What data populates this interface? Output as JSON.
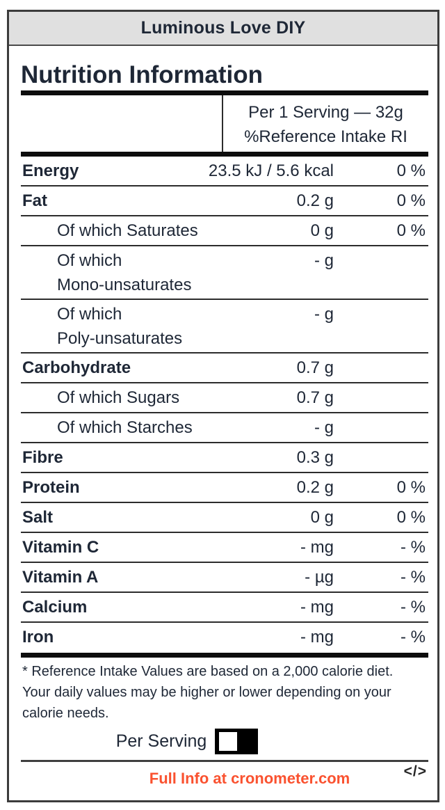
{
  "brand": {
    "title": "Luminous Love DIY"
  },
  "label": {
    "title": "Nutrition Information",
    "column_header": {
      "serving": "Per 1 Serving — 32g",
      "reference": "%Reference Intake RI"
    },
    "rows": [
      {
        "name": "Energy",
        "amount": "23.5 kJ / 5.6 kcal",
        "ri": "0 %"
      },
      {
        "name": "Fat",
        "amount": "0.2 g",
        "ri": "0 %"
      },
      {
        "name": "Of which Saturates",
        "amount": "0 g",
        "ri": "0 %"
      },
      {
        "name": "Of which",
        "name2": "Mono-unsaturates",
        "amount": "- g",
        "ri": ""
      },
      {
        "name": "Of which",
        "name2": "Poly-unsaturates",
        "amount": "- g",
        "ri": ""
      },
      {
        "name": "Carbohydrate",
        "amount": "0.7 g",
        "ri": ""
      },
      {
        "name": "Of which Sugars",
        "amount": "0.7 g",
        "ri": ""
      },
      {
        "name": "Of which Starches",
        "amount": "- g",
        "ri": ""
      },
      {
        "name": "Fibre",
        "amount": "0.3 g",
        "ri": ""
      },
      {
        "name": "Protein",
        "amount": "0.2 g",
        "ri": "0 %"
      },
      {
        "name": "Salt",
        "amount": "0 g",
        "ri": "0 %"
      },
      {
        "name": "Vitamin C",
        "amount": "- mg",
        "ri": "- %"
      },
      {
        "name": "Vitamin A",
        "amount": "- µg",
        "ri": "- %"
      },
      {
        "name": "Calcium",
        "amount": "- mg",
        "ri": "- %"
      },
      {
        "name": "Iron",
        "amount": "- mg",
        "ri": "- %"
      }
    ],
    "footnote_lines": [
      "* Reference Intake Values are based on a 2,000 calorie diet.",
      "Your daily values may be higher or lower depending on your",
      "calorie needs."
    ],
    "per_serving": {
      "label": "Per Serving"
    },
    "footer": {
      "link": "Full Info at cronometer.com",
      "embed_icon": "</>"
    }
  },
  "colors": {
    "text": "#1E2736",
    "accent_orange": "#FA5230",
    "header_bg": "#E0E0E0",
    "line": "#2C2C2C",
    "toggle_bg": "#000000"
  }
}
